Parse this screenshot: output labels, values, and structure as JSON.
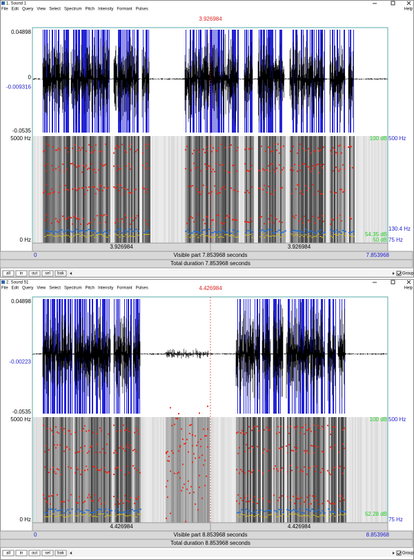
{
  "windows": [
    {
      "title": "1. Sound 1",
      "menu": [
        "File",
        "Edit",
        "Query",
        "View",
        "Select",
        "Spectrum",
        "Pitch",
        "Intensity",
        "Formant",
        "Pulses"
      ],
      "help": "Help",
      "cursor_time": "3.926984",
      "amp_max": "0.04898",
      "amp_zero": "0",
      "amp_cursor": "-0.009316",
      "amp_min": "-0.0535",
      "freq_max": "5000 Hz",
      "freq_min": "0 Hz",
      "db_max": "100 dB",
      "pitch_max": "500 Hz",
      "pitch_cursor": "130.4 Hz",
      "db_cursor": "54.35 dB",
      "db_min": "50 dB",
      "pitch_min": "75 Hz",
      "left_half": "3.926984",
      "right_half": "3.926984",
      "visible_start": "0",
      "visible": "Visible part 7.853968 seconds",
      "visible_end": "7.853968",
      "total": "Total duration 7.853968 seconds",
      "buttons": [
        "all",
        "in",
        "out",
        "sel",
        "bak"
      ],
      "group": "Group"
    },
    {
      "title": "2. Sound 51",
      "menu": [
        "File",
        "Edit",
        "Query",
        "View",
        "Select",
        "Spectrum",
        "Pitch",
        "Intensity",
        "Formant",
        "Pulses"
      ],
      "help": "Help",
      "cursor_time": "4.426984",
      "amp_max": "0.04898",
      "amp_cursor": "-0.00223",
      "amp_min": "-0.0535",
      "freq_max": "5000 Hz",
      "freq_min": "0 Hz",
      "db_max": "100 dB",
      "pitch_max": "500 Hz",
      "db_cursor": "52.28 dB",
      "pitch_min": "75 Hz",
      "left_half": "4.426984",
      "right_half": "4.426984",
      "visible_start": "0",
      "visible": "Visible part 8.853968 seconds",
      "visible_end": "8.853968",
      "total": "Total duration 8.853968 seconds",
      "buttons": [
        "all",
        "in",
        "out",
        "sel",
        "bak"
      ],
      "group": "Group"
    }
  ]
}
